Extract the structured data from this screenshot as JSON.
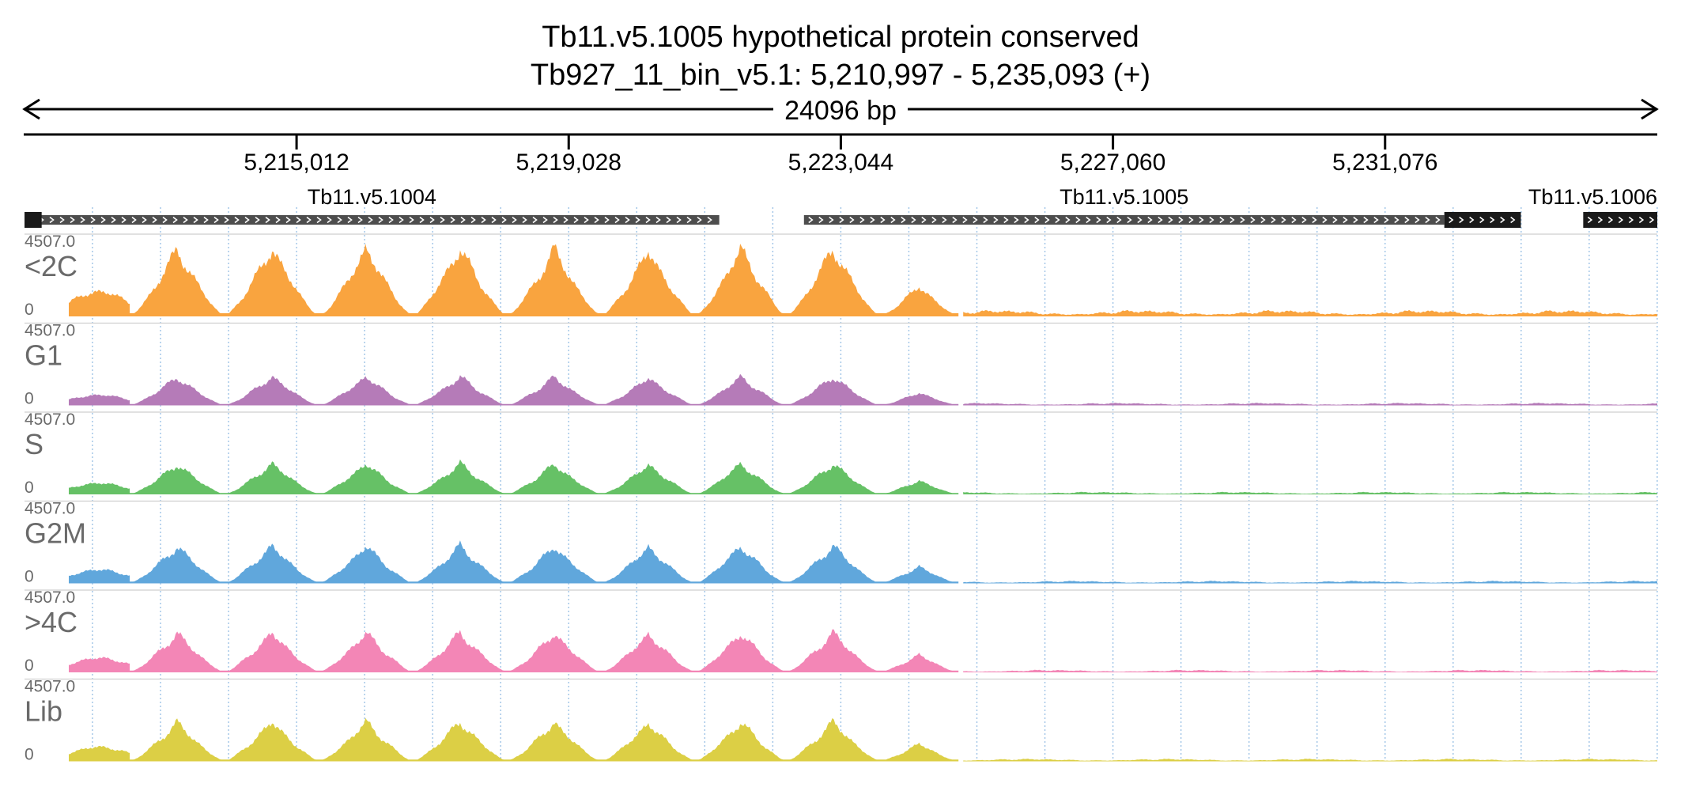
{
  "header": {
    "title_line1": "Tb11.v5.1005  hypothetical protein  conserved",
    "title_line2": "Tb927_11_bin_v5.1: 5,210,997 - 5,235,093 (+)",
    "span_label": "24096 bp"
  },
  "colors": {
    "axis": "#000000",
    "gene": "#4d4d4d",
    "gene_dark": "#1a1a1a",
    "grid": "#9ec3e6",
    "label": "#6a6a6a"
  },
  "chart_data": {
    "type": "area",
    "genomic_range": {
      "chrom": "Tb927_11_bin_v5.1",
      "start": 5210997,
      "end": 5235093,
      "strand": "+"
    },
    "x_ticks": [
      {
        "pos": 5215012,
        "label": "5,215,012"
      },
      {
        "pos": 5219028,
        "label": "5,219,028"
      },
      {
        "pos": 5223044,
        "label": "5,223,044"
      },
      {
        "pos": 5227060,
        "label": "5,227,060"
      },
      {
        "pos": 5231076,
        "label": "5,231,076"
      }
    ],
    "genes": [
      {
        "name": "Tb11.v5.1004",
        "start": 5210997,
        "end": 5221250,
        "color": "#4d4d4d",
        "show_label": true
      },
      {
        "name": "Tb11.v5.1005",
        "start": 5222500,
        "end": 5231950,
        "color": "#4d4d4d",
        "show_label": true
      },
      {
        "name": "",
        "start": 5231950,
        "end": 5233080,
        "color": "#1a1a1a",
        "show_label": false
      },
      {
        "name": "Tb11.v5.1006",
        "start": 5234000,
        "end": 5235093,
        "color": "#1a1a1a",
        "show_label": true
      }
    ],
    "gene_start_marker": {
      "start": 5210997,
      "end": 5211250
    },
    "y_range": [
      0,
      4507.0
    ],
    "y_max_label": "4507.0",
    "y_min_label": "0",
    "segments": [
      {
        "start": 5211650,
        "end": 5212550,
        "peak": 0.36
      },
      {
        "start": 5212550,
        "end": 5213950,
        "peak": 0.98
      },
      {
        "start": 5213950,
        "end": 5215350,
        "peak": 1.0
      },
      {
        "start": 5215350,
        "end": 5216730,
        "peak": 1.0
      },
      {
        "start": 5216730,
        "end": 5218120,
        "peak": 1.0
      },
      {
        "start": 5218120,
        "end": 5219510,
        "peak": 0.98
      },
      {
        "start": 5219510,
        "end": 5220900,
        "peak": 0.96
      },
      {
        "start": 5220900,
        "end": 5222240,
        "peak": 1.0
      },
      {
        "start": 5222240,
        "end": 5223620,
        "peak": 1.0
      },
      {
        "start": 5223620,
        "end": 5224780,
        "peak": 0.45
      }
    ],
    "tail_level": 0.03,
    "series": [
      {
        "name": "<2C",
        "color": "#f9a43f",
        "scale": 1.0
      },
      {
        "name": "G1",
        "color": "#b57bb8",
        "scale": 0.42
      },
      {
        "name": "S",
        "color": "#66c166",
        "scale": 0.45
      },
      {
        "name": "G2M",
        "color": "#60a7dc",
        "scale": 0.55
      },
      {
        "name": ">4C",
        "color": "#f386b6",
        "scale": 0.58
      },
      {
        "name": "Lib",
        "color": "#dccf45",
        "scale": 0.58
      }
    ]
  }
}
